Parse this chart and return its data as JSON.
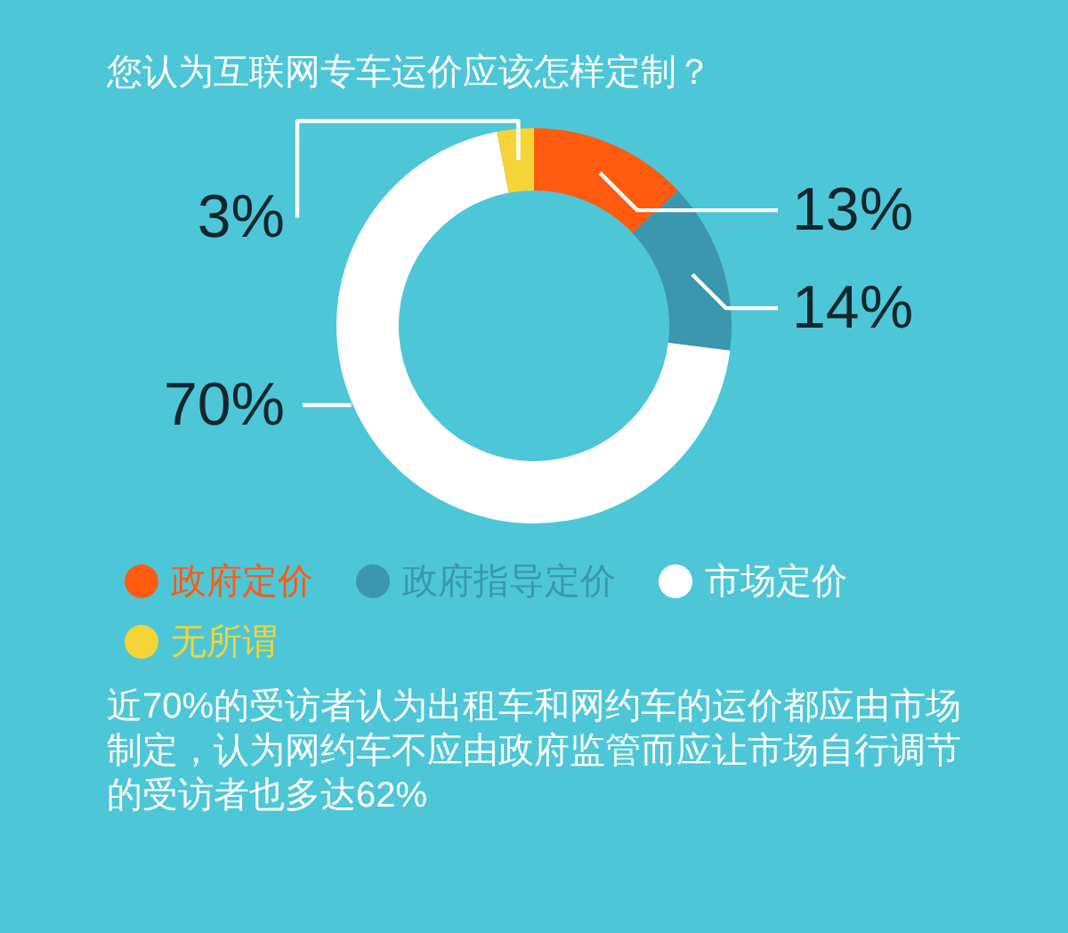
{
  "chart_data": {
    "type": "donut",
    "title": "您认为互联网专车运价应该怎样定制？",
    "categories": [
      "政府定价",
      "政府指导定价",
      "市场定价",
      "无所谓"
    ],
    "values": [
      13,
      14,
      70,
      3
    ],
    "colors": [
      "#ff5b10",
      "#3a97ad",
      "#ffffff",
      "#f4d437"
    ],
    "value_labels": [
      "13%",
      "14%",
      "70%",
      "3%"
    ],
    "legend": "bottom",
    "annotations": [
      "近70%的受访者认为出租车和网约车的运价都应由市场制定，认为网约车不应由政府监管而应让市场自行调节的受访者也多达62%"
    ]
  }
}
